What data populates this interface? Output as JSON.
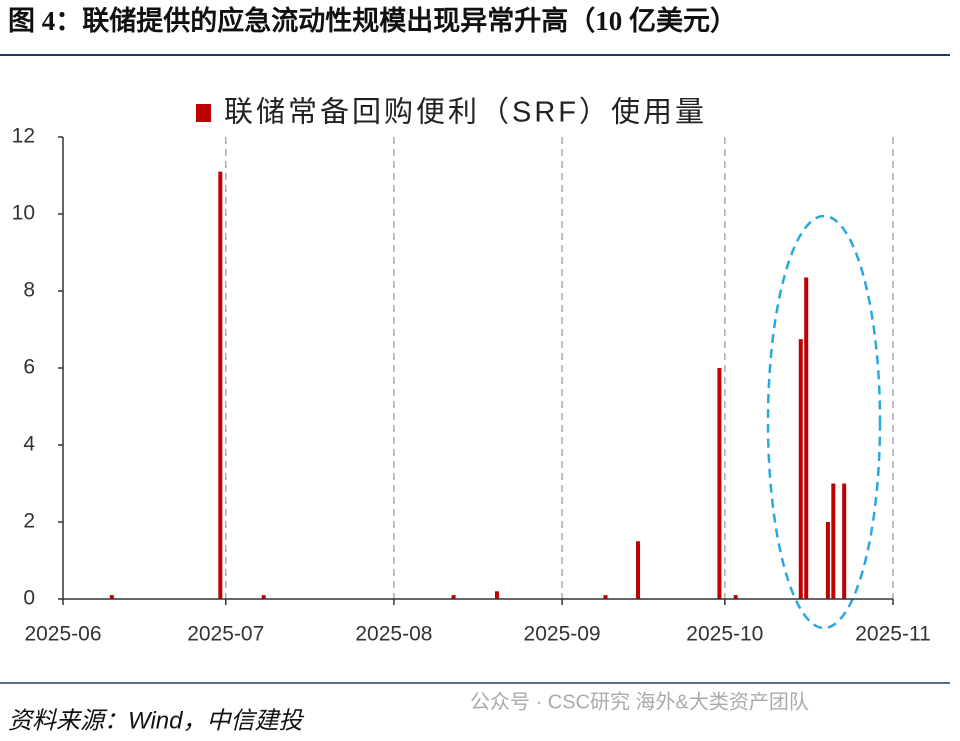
{
  "chart_data": {
    "type": "bar",
    "title": "图 4：联储提供的应急流动性规模出现异常升高（10 亿美元）",
    "series": [
      {
        "name": "联储常备回购便利（SRF）使用量",
        "color": "#c00000",
        "x": [
          9,
          29,
          37,
          72,
          80,
          100,
          106,
          121,
          124,
          136,
          137,
          141,
          142,
          144
        ],
        "values": [
          0.1,
          11.1,
          0.1,
          0.1,
          0.2,
          0.1,
          1.5,
          6.0,
          0.1,
          6.75,
          8.35,
          2.0,
          3.0,
          3.0
        ]
      }
    ],
    "xlim": [
      0,
      153
    ],
    "xticks": [
      {
        "value": 0,
        "label": "2025-06"
      },
      {
        "value": 30,
        "label": "2025-07"
      },
      {
        "value": 61,
        "label": "2025-08"
      },
      {
        "value": 92,
        "label": "2025-09"
      },
      {
        "value": 122,
        "label": "2025-10"
      },
      {
        "value": 153,
        "label": "2025-11"
      }
    ],
    "ylim": [
      0,
      12
    ],
    "yticks": [
      0,
      2,
      4,
      6,
      8,
      10,
      12
    ],
    "x_grid": true,
    "source": "资料来源：Wind，中信建投",
    "watermark": "公众号 · CSC研究 海外&大类资产团队"
  }
}
